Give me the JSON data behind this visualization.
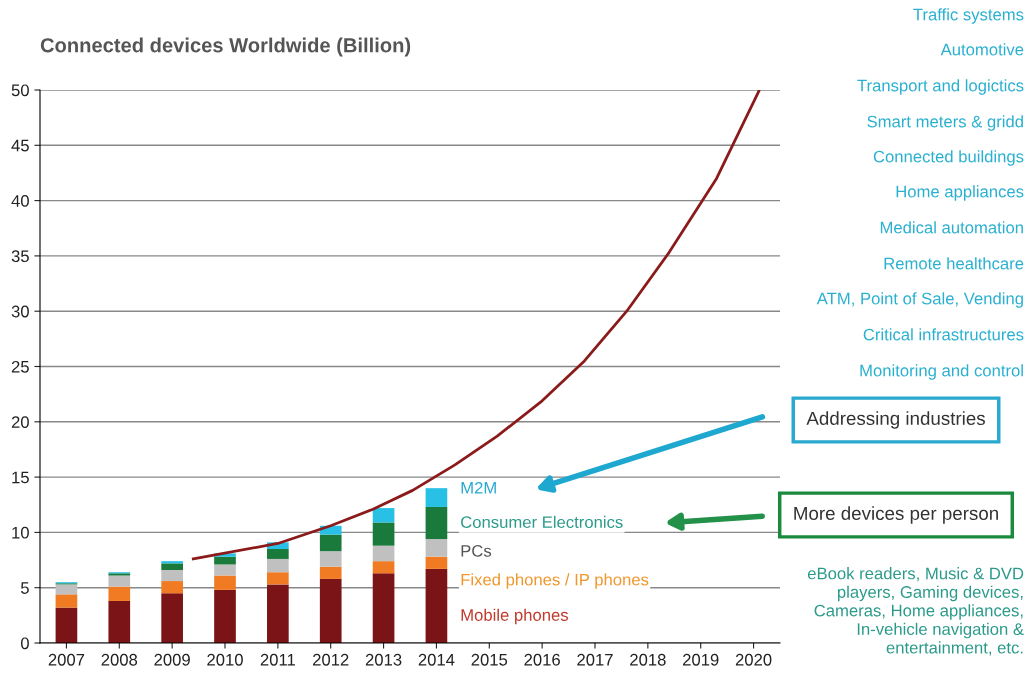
{
  "chart_data": {
    "type": "bar",
    "title": "Connected devices Worldwide (Billion)",
    "stacked": true,
    "x": [
      2007,
      2008,
      2009,
      2010,
      2011,
      2012,
      2013,
      2014
    ],
    "series": [
      {
        "name": "Mobile phones",
        "color": "#7b1416",
        "values": [
          3.2,
          3.8,
          4.5,
          4.8,
          5.3,
          5.8,
          6.3,
          6.7
        ]
      },
      {
        "name": "Fixed phones / IP phones",
        "color": "#f07b22",
        "values": [
          1.2,
          1.3,
          1.1,
          1.3,
          1.1,
          1.1,
          1.1,
          1.1
        ]
      },
      {
        "name": "PCs",
        "color": "#c0c0c0",
        "values": [
          0.9,
          1.0,
          1.0,
          1.0,
          1.2,
          1.4,
          1.4,
          1.6
        ]
      },
      {
        "name": "Consumer Electronics",
        "color": "#1a7a3c",
        "values": [
          0.1,
          0.2,
          0.6,
          0.7,
          0.9,
          1.5,
          2.1,
          2.9
        ]
      },
      {
        "name": "M2M",
        "color": "#29c0e6",
        "values": [
          0.1,
          0.1,
          0.2,
          0.3,
          0.6,
          0.8,
          1.3,
          1.7
        ]
      },
      {
        "type": "line",
        "color": "#8b1a1a",
        "x": [
          2009.4,
          2011.0,
          2012.0,
          2012.8,
          2013.55,
          2014.35,
          2015.15,
          2016.0,
          2016.8,
          2017.6,
          2018.4,
          2019.3,
          2020.1
        ],
        "values": [
          7.6,
          9.0,
          10.6,
          12.1,
          13.8,
          16.1,
          18.7,
          21.9,
          25.5,
          30.0,
          35.3,
          42.0,
          49.9
        ]
      }
    ],
    "xlim": [
      2006.5,
      2020.5
    ],
    "xticks": [
      2007,
      2008,
      2009,
      2010,
      2011,
      2012,
      2013,
      2014,
      2015,
      2016,
      2017,
      2018,
      2019,
      2020
    ],
    "ylim": [
      0,
      50
    ],
    "yticks": [
      0,
      5,
      10,
      15,
      20,
      25,
      30,
      35,
      40,
      45,
      50
    ],
    "grid": "y",
    "legend": false,
    "annotations": [
      "Traffic systems",
      "Automotive",
      "Transport and logictics",
      "Smart meters & gridd",
      "Connected buildings",
      "Home appliances",
      "Medical automation",
      "Remote healthcare",
      "ATM, Point of Sale, Vending",
      "Critical infrastructures",
      "Monitoring and control",
      "Addressing industries",
      "More devices per person",
      "eBook readers, Music & DVD\nplayers, Gaming devices,\nCameras, Home appliances,\nIn-vehicle navigation &\nentertainment, etc."
    ]
  }
}
